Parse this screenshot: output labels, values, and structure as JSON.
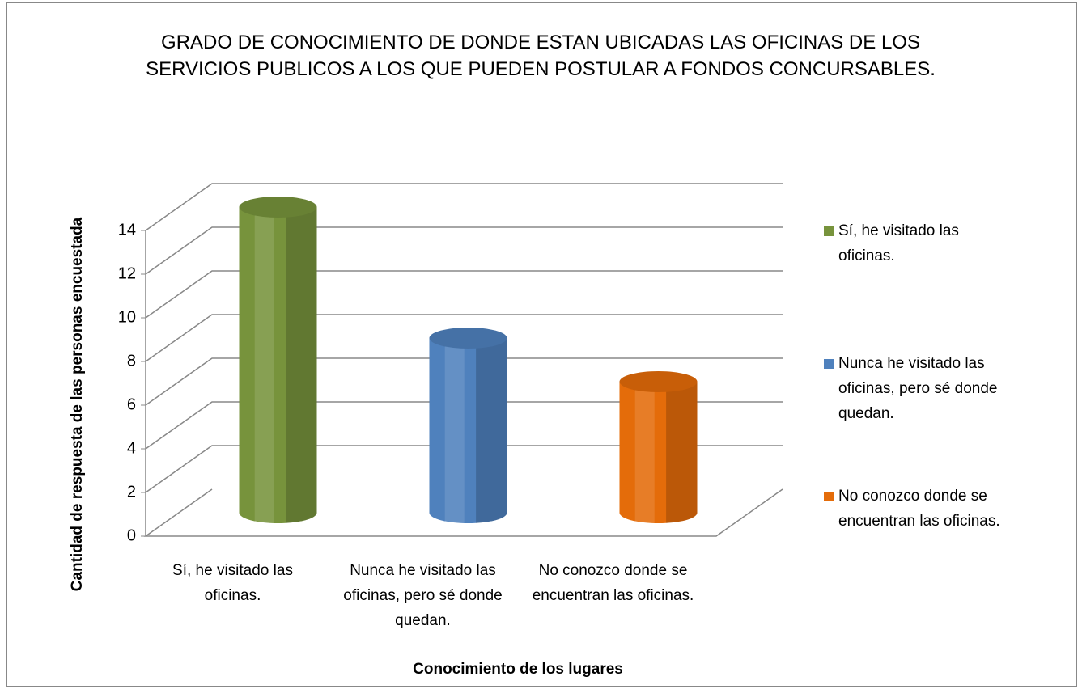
{
  "chart_data": {
    "type": "bar3d",
    "title": "GRADO DE CONOCIMIENTO DE DONDE ESTAN UBICADAS LAS OFICINAS DE LOS SERVICIOS PUBLICOS A LOS QUE PUEDEN POSTULAR A FONDOS CONCURSABLES.",
    "x_label": "Conocimiento de los lugares",
    "y_label": "Cantidad de respuesta de las personas encuestada",
    "categories": [
      "Sí, he visitado las oficinas.",
      "Nunca he visitado las oficinas, pero sé donde quedan.",
      "No conozco donde se encuentran las oficinas."
    ],
    "values": [
      14,
      8,
      6
    ],
    "colors": [
      "#77933c",
      "#4f81bd",
      "#e46c0a"
    ],
    "ylim": [
      0,
      14
    ],
    "yticks": [
      0,
      2,
      4,
      6,
      8,
      10,
      12,
      14
    ],
    "grid": true,
    "legend": "right"
  }
}
